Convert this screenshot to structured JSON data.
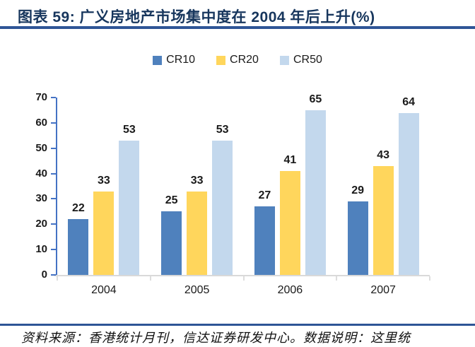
{
  "title": "图表 59: 广义房地产市场集中度在 2004 年后上升(%)",
  "footer": {
    "source_text": "资料来源：香港统计月刊，信达证券研发中心。数据说明：这里统"
  },
  "colors": {
    "title_text": "#17365D",
    "divider": "#2E5596",
    "y_axis": "#4472C4",
    "x_axis": "#D9D9D9",
    "cr10": "#4F81BD",
    "cr20": "#FFD65C",
    "cr50": "#C3D8ED"
  },
  "chart_data": {
    "type": "bar",
    "title": "广义房地产市场集中度在 2004 年后上升(%)",
    "categories": [
      "2004",
      "2005",
      "2006",
      "2007"
    ],
    "series": [
      {
        "name": "CR10",
        "color": "#4F81BD",
        "values": [
          22,
          25,
          27,
          29
        ]
      },
      {
        "name": "CR20",
        "color": "#FFD65C",
        "values": [
          33,
          33,
          41,
          43
        ]
      },
      {
        "name": "CR50",
        "color": "#C3D8ED",
        "values": [
          53,
          53,
          65,
          64
        ]
      }
    ],
    "xlabel": "",
    "ylabel": "",
    "ylim": [
      0,
      70
    ],
    "ytick_step": 10,
    "yticks": [
      0,
      10,
      20,
      30,
      40,
      50,
      60,
      70
    ],
    "grid": false,
    "data_labels": true,
    "legend_position": "top"
  }
}
